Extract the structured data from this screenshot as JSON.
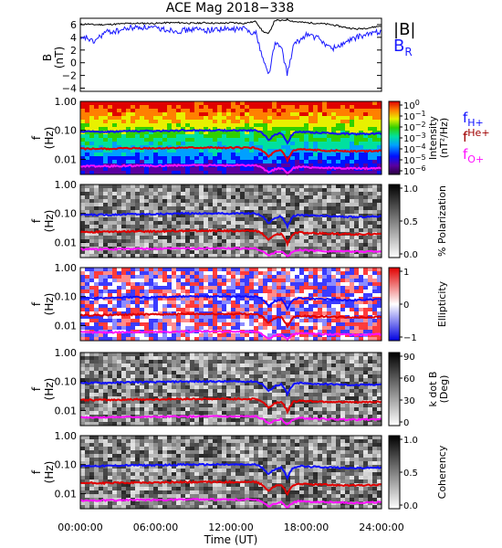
{
  "title": "ACE Mag 2018−338",
  "x_axis": {
    "label": "Time (UT)",
    "ticks": [
      "00:00:00",
      "06:00:00",
      "12:00:00",
      "18:00:00",
      "24:00:00"
    ],
    "range_hours": [
      0,
      24
    ]
  },
  "colors": {
    "B_total": "#000000",
    "B_R": "#1a1aff",
    "f_Hplus": "#1010ff",
    "f_Heplus": "#e00000",
    "f_Oplus": "#ff10ff"
  },
  "legends": {
    "panel1": {
      "B_total": "|B|",
      "B_R": "B",
      "B_R_sub": "R"
    },
    "panel2": {
      "f_Hplus": "f",
      "f_Hplus_sub": "H+",
      "f_Heplus": "f",
      "f_Heplus_sup": "He+",
      "f_Oplus": "f",
      "f_Oplus_sub": "O+"
    }
  },
  "panels": [
    {
      "ylabel_1": "B",
      "ylabel_2": "(nT)",
      "yticks": [
        "6",
        "4",
        "2",
        "0",
        "−2",
        "−4"
      ]
    },
    {
      "ylabel_1": "f",
      "ylabel_2": "(Hz)",
      "yticks": [
        "1.00",
        "0.10",
        "0.01"
      ],
      "cbar_title_1": "Intensity",
      "cbar_title_2": "(nT²/Hz)",
      "cbar_ticks": [
        {
          "base": "10",
          "exp": "0"
        },
        {
          "base": "10",
          "exp": "−1"
        },
        {
          "base": "10",
          "exp": "−2"
        },
        {
          "base": "10",
          "exp": "−3"
        },
        {
          "base": "10",
          "exp": "−4"
        },
        {
          "base": "10",
          "exp": "−5"
        },
        {
          "base": "10",
          "exp": "−6"
        }
      ]
    },
    {
      "ylabel_1": "f",
      "ylabel_2": "(Hz)",
      "yticks": [
        "1.00",
        "0.10",
        "0.01"
      ],
      "cbar_title_1": "% Polarization",
      "cbar_ticks": [
        "1.0",
        "0.5",
        "0.0"
      ]
    },
    {
      "ylabel_1": "f",
      "ylabel_2": "(Hz)",
      "yticks": [
        "1.00",
        "0.10",
        "0.01"
      ],
      "cbar_title_1": "Ellipticity",
      "cbar_ticks": [
        "1",
        "0",
        "−1"
      ]
    },
    {
      "ylabel_1": "f",
      "ylabel_2": "(Hz)",
      "yticks": [
        "1.00",
        "0.10",
        "0.01"
      ],
      "cbar_title_1": "k dot B",
      "cbar_title_2": "(Deg)",
      "cbar_ticks": [
        "90",
        "60",
        "30",
        "0"
      ]
    },
    {
      "ylabel_1": "f",
      "ylabel_2": "(Hz)",
      "yticks": [
        "1.00",
        "0.10",
        "0.01"
      ],
      "cbar_title_1": "Coherency",
      "cbar_ticks": [
        "1.0",
        "0.5",
        "0.0"
      ]
    }
  ],
  "chart_data": [
    {
      "type": "line",
      "y_unit": "nT",
      "ylim": [
        -4.5,
        7
      ],
      "x_hours": [
        0,
        0.5,
        1,
        2,
        3,
        4,
        5,
        6,
        7,
        8,
        9,
        10,
        11,
        12,
        13,
        14,
        14.5,
        15,
        15.5,
        16,
        16.5,
        17,
        17.5,
        18,
        19,
        20,
        21,
        22,
        23,
        24
      ],
      "series": [
        {
          "name": "|B|",
          "values": [
            6.0,
            6.1,
            6.0,
            6.0,
            6.1,
            6.2,
            6.2,
            6.2,
            6.3,
            6.3,
            6.2,
            6.3,
            6.2,
            6.3,
            6.2,
            6.5,
            5.0,
            4.5,
            6.7,
            6.6,
            6.8,
            6.5,
            6.4,
            6.3,
            6.2,
            6.0,
            5.6,
            5.3,
            5.5,
            5.8
          ]
        },
        {
          "name": "B_R",
          "values": [
            3.5,
            4.0,
            3.2,
            4.8,
            5.0,
            5.5,
            5.6,
            5.4,
            5.2,
            5.0,
            5.3,
            5.1,
            5.3,
            5.2,
            5.4,
            4.6,
            1.0,
            -2.0,
            3.0,
            2.5,
            -1.8,
            2.8,
            3.5,
            4.5,
            3.8,
            2.2,
            3.0,
            4.0,
            4.5,
            5.0
          ]
        }
      ]
    },
    {
      "type": "heatmap",
      "quantity": "Intensity",
      "y_scale": "log",
      "ylim_hz": [
        0.003,
        1.0
      ],
      "cbar_scale": "log",
      "cbar_range": [
        1e-06,
        1
      ],
      "x_hours": [
        0,
        2,
        4,
        6,
        8,
        10,
        12,
        14,
        14.5,
        15,
        15.5,
        16,
        16.5,
        17,
        17.5,
        18,
        20,
        22,
        24
      ],
      "series": [
        {
          "name": "f_H+",
          "values": [
            0.09,
            0.09,
            0.095,
            0.095,
            0.1,
            0.1,
            0.1,
            0.1,
            0.08,
            0.045,
            0.07,
            0.08,
            0.035,
            0.08,
            0.09,
            0.085,
            0.08,
            0.075,
            0.08
          ]
        },
        {
          "name": "f_He+",
          "values": [
            0.023,
            0.023,
            0.024,
            0.024,
            0.025,
            0.025,
            0.025,
            0.025,
            0.02,
            0.012,
            0.018,
            0.02,
            0.009,
            0.02,
            0.022,
            0.021,
            0.02,
            0.019,
            0.02
          ]
        },
        {
          "name": "f_O+",
          "values": [
            0.0058,
            0.0058,
            0.006,
            0.006,
            0.0062,
            0.0062,
            0.0062,
            0.0062,
            0.005,
            0.0035,
            0.0045,
            0.005,
            0.0032,
            0.005,
            0.0055,
            0.0053,
            0.005,
            0.0048,
            0.005
          ]
        }
      ]
    },
    {
      "type": "heatmap",
      "quantity": "% Polarization",
      "y_scale": "log",
      "ylim_hz": [
        0.003,
        1.0
      ],
      "cbar_range": [
        0,
        1
      ]
    },
    {
      "type": "heatmap",
      "quantity": "Ellipticity",
      "y_scale": "log",
      "ylim_hz": [
        0.003,
        1.0
      ],
      "cbar_range": [
        -1,
        1
      ]
    },
    {
      "type": "heatmap",
      "quantity": "k dot B",
      "y_scale": "log",
      "ylim_hz": [
        0.003,
        1.0
      ],
      "cbar_range": [
        0,
        90
      ]
    },
    {
      "type": "heatmap",
      "quantity": "Coherency",
      "y_scale": "log",
      "ylim_hz": [
        0.003,
        1.0
      ],
      "cbar_range": [
        0,
        1
      ]
    }
  ]
}
